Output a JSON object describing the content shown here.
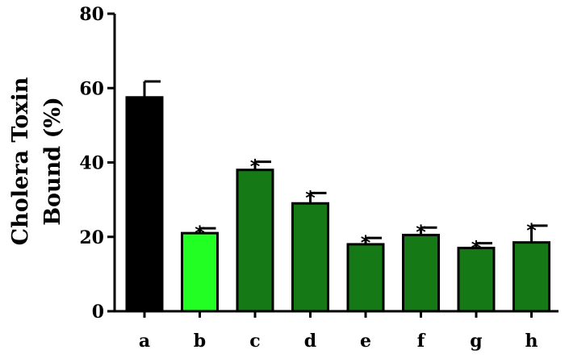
{
  "chart_data": {
    "type": "bar",
    "title": "",
    "xlabel": "",
    "ylabel_lines": [
      "Cholera Toxin",
      "Bound (%)"
    ],
    "ylim": [
      0,
      80
    ],
    "yticks": [
      0,
      20,
      40,
      60,
      80
    ],
    "grid": false,
    "categories": [
      "a",
      "b",
      "c",
      "d",
      "e",
      "f",
      "g",
      "h"
    ],
    "values": [
      57.5,
      21,
      38,
      29,
      18,
      20.5,
      17,
      18.5
    ],
    "errors": [
      4.3,
      1.3,
      2.2,
      2.8,
      1.7,
      2.0,
      1.3,
      4.5
    ],
    "significance": [
      "",
      "*",
      "*",
      "*",
      "*",
      "*",
      "*",
      "*"
    ],
    "colors": [
      "#000000",
      "#22ff22",
      "#157a15",
      "#157a15",
      "#157a15",
      "#157a15",
      "#157a15",
      "#157a15"
    ]
  }
}
